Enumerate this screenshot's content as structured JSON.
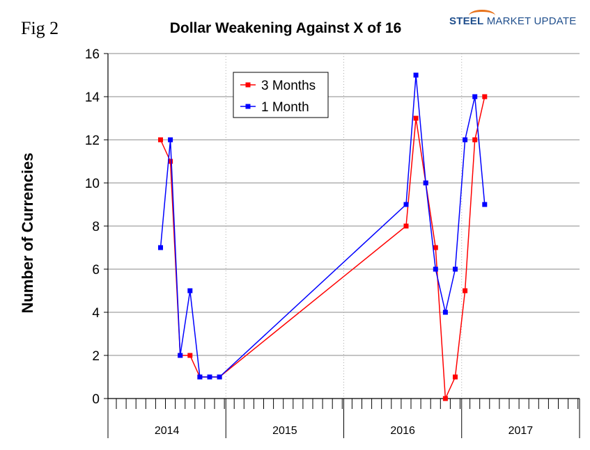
{
  "figure_label": "Fig 2",
  "logo": {
    "text_bold": "STEEL",
    "text_rest": "MARKET UPDATE",
    "arc_color": "#e8731c",
    "text_color": "#1f4e8c"
  },
  "chart_data": {
    "type": "line",
    "title": "Dollar Weakening Against X of 16",
    "ylabel": "Number of Currencies",
    "xlabel": "",
    "ylim": [
      0,
      16
    ],
    "yticks": [
      0,
      2,
      4,
      6,
      8,
      10,
      12,
      14,
      16
    ],
    "x_unit": "month index from Jan 2014",
    "xlim": [
      0,
      48
    ],
    "year_groups": [
      "2014",
      "2015",
      "2016",
      "2017"
    ],
    "grid": {
      "horizontal": true,
      "vertical_year_dividers": true
    },
    "legend_position": "top-left",
    "series": [
      {
        "name": "3 Months",
        "color": "#ff0000",
        "points": [
          [
            5,
            12
          ],
          [
            6,
            11
          ],
          [
            7,
            2
          ],
          [
            8,
            2
          ],
          [
            9,
            1
          ],
          [
            10,
            1
          ],
          [
            11,
            1
          ],
          [
            30,
            8
          ],
          [
            31,
            13
          ],
          [
            32,
            10
          ],
          [
            33,
            7
          ],
          [
            34,
            0
          ],
          [
            35,
            1
          ],
          [
            36,
            5
          ],
          [
            37,
            12
          ],
          [
            38,
            14
          ]
        ]
      },
      {
        "name": "1 Month",
        "color": "#0000ff",
        "points": [
          [
            5,
            7
          ],
          [
            6,
            12
          ],
          [
            7,
            2
          ],
          [
            8,
            5
          ],
          [
            9,
            1
          ],
          [
            10,
            1
          ],
          [
            11,
            1
          ],
          [
            30,
            9
          ],
          [
            31,
            15
          ],
          [
            32,
            10
          ],
          [
            33,
            6
          ],
          [
            34,
            4
          ],
          [
            35,
            6
          ],
          [
            36,
            12
          ],
          [
            37,
            14
          ],
          [
            38,
            9
          ]
        ]
      }
    ]
  }
}
